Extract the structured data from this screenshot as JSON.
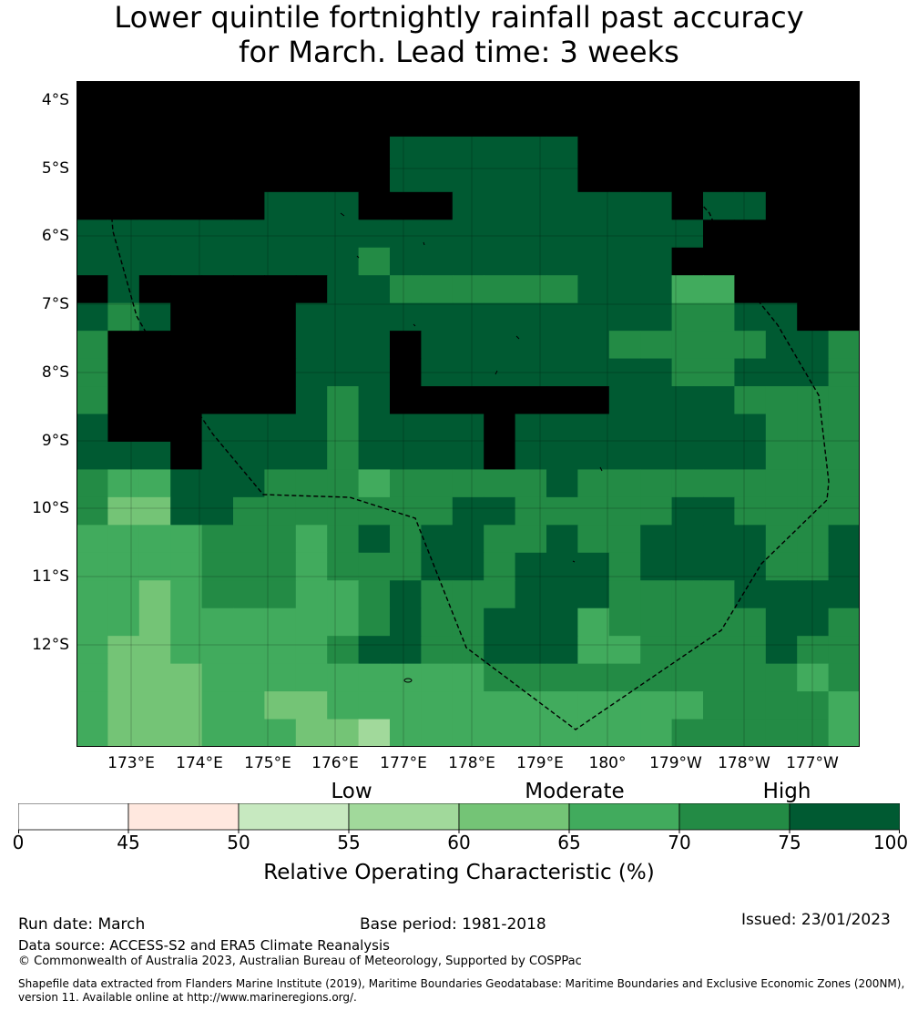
{
  "title": {
    "line1": "Lower quintile fortnightly rainfall past accuracy",
    "line2": "for March. Lead time: 3 weeks"
  },
  "map": {
    "lat_labels": [
      "4°S",
      "5°S",
      "6°S",
      "7°S",
      "8°S",
      "9°S",
      "10°S",
      "11°S",
      "12°S"
    ],
    "lon_labels": [
      "173°E",
      "174°E",
      "175°E",
      "176°E",
      "177°E",
      "178°E",
      "179°E",
      "180°",
      "179°W",
      "178°W",
      "177°W"
    ],
    "grid_rows": [
      "8888888888888888888888888",
      "8888888888888888888888888",
      "8888888888777777888888888",
      "8888888888777777888888888",
      "8888887778887777777877888",
      "7777777777777777777788888",
      "7777777776777777777888888",
      "8788888877666666777558888",
      "7678888777777777777667788",
      "6888888777877777766666776",
      "6888888777877777777667776",
      "6888888767888888877776666",
      "7888777767777877777777666",
      "7778777767777877777777666",
      "6557776665666667666666666",
      "6447766666667766666776666",
      "5555666567677667667777667",
      "5555666566677677767777667",
      "5545666556766677766667777",
      "5545555556766777566666776",
      "5445555567766777556666766",
      "5444555555555666666666656",
      "5444554455555555555566665",
      "5444555443555555555666665"
    ],
    "class_colors": [
      "#ffffff",
      "#ffe8df",
      "#c7e9c0",
      "#a1d99b",
      "#74c476",
      "#41ab5d",
      "#238b45",
      "#005a32"
    ],
    "boundary_line": "#000000"
  },
  "colorbar": {
    "categories": [
      "Low",
      "Moderate",
      "High"
    ],
    "ticks": [
      "0",
      "45",
      "50",
      "55",
      "60",
      "65",
      "70",
      "75",
      "100"
    ],
    "colors": [
      "#ffffff",
      "#ffe8df",
      "#c7e9c0",
      "#a1d99b",
      "#74c476",
      "#41ab5d",
      "#238b45",
      "#005a32"
    ],
    "label": "Relative Operating Characteristic (%)"
  },
  "footer": {
    "run_date": "Run date: March",
    "base_period": "Base period: 1981-2018",
    "issued": "Issued: 23/01/2023",
    "data_source": "Data source: ACCESS-S2 and ERA5 Climate Reanalysis",
    "copyright": "© Commonwealth of Australia 2023, Australian Bureau of Meteorology, Supported by COSPPac",
    "shapefile": "Shapefile data extracted from Flanders Marine Institute (2019), Maritime Boundaries Geodatabase: Maritime Boundaries and Exclusive Economic Zones (200NM), version 11. Available online at http://www.marineregions.org/."
  }
}
